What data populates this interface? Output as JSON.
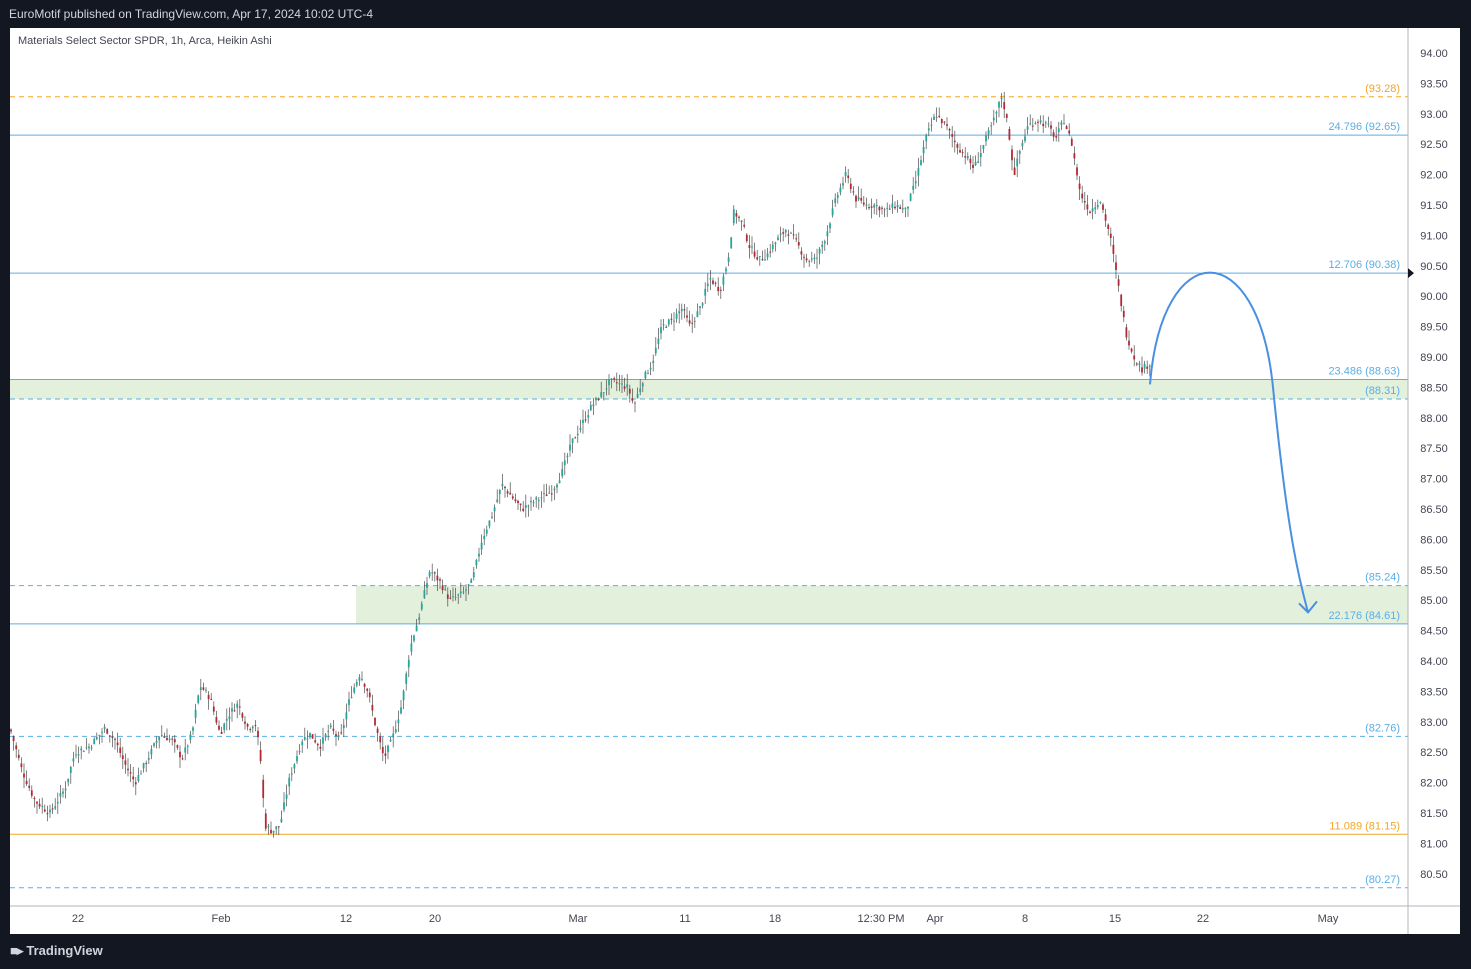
{
  "header": {
    "publish_text": "EuroMotif published on TradingView.com, Apr 17, 2024 10:02 UTC-4"
  },
  "footer": {
    "brand": "TradingView",
    "logo_icon": "tradingview-logo-icon"
  },
  "chart": {
    "symbol_text": "Materials Select Sector SPDR, 1h, Arca, Heikin Ashi"
  },
  "colors": {
    "up": "#26a69a",
    "down": "#b22833",
    "wick": "#4a4a4a",
    "blue_line": "#5aaee6",
    "orange_line": "#f5a623",
    "zone_fill": "#e3f0dc",
    "arrow": "#4a90e2"
  },
  "chart_data": {
    "type": "candlestick",
    "style": "Heikin Ashi",
    "timeframe": "1h",
    "y_range": [
      80.2,
      94.2
    ],
    "y_ticks": [
      "94.00",
      "93.50",
      "93.00",
      "92.50",
      "92.00",
      "91.50",
      "91.00",
      "90.50",
      "90.00",
      "89.50",
      "89.00",
      "88.50",
      "88.00",
      "87.50",
      "87.00",
      "86.50",
      "86.00",
      "85.50",
      "85.00",
      "84.50",
      "84.00",
      "83.50",
      "83.00",
      "82.50",
      "82.00",
      "81.50",
      "81.00",
      "80.50"
    ],
    "x_ticks": [
      "22",
      "Feb",
      "12",
      "20",
      "Mar",
      "11",
      "18",
      "12:30 PM",
      "Apr",
      "8",
      "15",
      "22",
      "May"
    ],
    "close_path": [
      [
        0,
        82.9
      ],
      [
        12,
        82.2
      ],
      [
        25,
        81.7
      ],
      [
        40,
        81.5
      ],
      [
        55,
        81.9
      ],
      [
        65,
        82.5
      ],
      [
        80,
        82.6
      ],
      [
        95,
        82.9
      ],
      [
        105,
        82.7
      ],
      [
        115,
        82.3
      ],
      [
        125,
        82.0
      ],
      [
        138,
        82.4
      ],
      [
        150,
        82.8
      ],
      [
        162,
        82.7
      ],
      [
        172,
        82.4
      ],
      [
        182,
        82.8
      ],
      [
        190,
        83.6
      ],
      [
        200,
        83.4
      ],
      [
        210,
        82.8
      ],
      [
        218,
        83.1
      ],
      [
        228,
        83.3
      ],
      [
        238,
        82.9
      ],
      [
        245,
        83.0
      ],
      [
        250,
        82.5
      ],
      [
        255,
        81.3
      ],
      [
        262,
        81.2
      ],
      [
        270,
        81.3
      ],
      [
        280,
        82.1
      ],
      [
        292,
        82.7
      ],
      [
        300,
        82.8
      ],
      [
        310,
        82.6
      ],
      [
        320,
        82.9
      ],
      [
        330,
        82.7
      ],
      [
        340,
        83.4
      ],
      [
        350,
        83.8
      ],
      [
        358,
        83.5
      ],
      [
        366,
        82.9
      ],
      [
        374,
        82.4
      ],
      [
        382,
        82.7
      ],
      [
        392,
        83.3
      ],
      [
        400,
        84.2
      ],
      [
        410,
        84.8
      ],
      [
        420,
        85.5
      ],
      [
        430,
        85.3
      ],
      [
        440,
        85.0
      ],
      [
        452,
        85.1
      ],
      [
        462,
        85.3
      ],
      [
        472,
        86.0
      ],
      [
        482,
        86.4
      ],
      [
        492,
        86.9
      ],
      [
        502,
        86.7
      ],
      [
        512,
        86.5
      ],
      [
        522,
        86.6
      ],
      [
        532,
        86.7
      ],
      [
        542,
        86.8
      ],
      [
        552,
        87.1
      ],
      [
        562,
        87.6
      ],
      [
        572,
        87.9
      ],
      [
        582,
        88.2
      ],
      [
        592,
        88.4
      ],
      [
        600,
        88.6
      ],
      [
        610,
        88.55
      ],
      [
        618,
        88.5
      ],
      [
        624,
        88.2
      ],
      [
        632,
        88.6
      ],
      [
        642,
        88.9
      ],
      [
        652,
        89.5
      ],
      [
        662,
        89.6
      ],
      [
        672,
        89.8
      ],
      [
        680,
        89.5
      ],
      [
        690,
        89.8
      ],
      [
        700,
        90.3
      ],
      [
        710,
        90.1
      ],
      [
        718,
        90.6
      ],
      [
        724,
        91.4
      ],
      [
        732,
        91.2
      ],
      [
        740,
        90.8
      ],
      [
        750,
        90.6
      ],
      [
        758,
        90.7
      ],
      [
        766,
        90.9
      ],
      [
        776,
        91.1
      ],
      [
        786,
        90.9
      ],
      [
        796,
        90.6
      ],
      [
        806,
        90.6
      ],
      [
        816,
        91.0
      ],
      [
        826,
        91.6
      ],
      [
        836,
        92.0
      ],
      [
        846,
        91.6
      ],
      [
        856,
        91.5
      ],
      [
        866,
        91.5
      ],
      [
        876,
        91.4
      ],
      [
        886,
        91.5
      ],
      [
        896,
        91.4
      ],
      [
        906,
        91.9
      ],
      [
        916,
        92.6
      ],
      [
        926,
        93.0
      ],
      [
        936,
        92.8
      ],
      [
        946,
        92.5
      ],
      [
        956,
        92.3
      ],
      [
        964,
        92.1
      ],
      [
        974,
        92.5
      ],
      [
        984,
        92.9
      ],
      [
        992,
        93.3
      ],
      [
        998,
        92.8
      ],
      [
        1004,
        92.0
      ],
      [
        1010,
        92.4
      ],
      [
        1018,
        92.8
      ],
      [
        1028,
        92.9
      ],
      [
        1038,
        92.8
      ],
      [
        1046,
        92.6
      ],
      [
        1054,
        92.9
      ],
      [
        1062,
        92.5
      ],
      [
        1070,
        91.7
      ],
      [
        1080,
        91.4
      ],
      [
        1090,
        91.6
      ],
      [
        1100,
        91.0
      ],
      [
        1108,
        90.2
      ],
      [
        1116,
        89.4
      ],
      [
        1124,
        89.0
      ],
      [
        1132,
        88.8
      ],
      [
        1140,
        88.9
      ],
      [
        1149,
        89.0
      ]
    ],
    "levels": [
      {
        "label": "(93.28)",
        "price": 93.28,
        "color": "orange",
        "style": "dashed"
      },
      {
        "label": "24.796 (92.65)",
        "price": 92.65,
        "color": "blue",
        "style": "solid"
      },
      {
        "label": "12.706 (90.38)",
        "price": 90.38,
        "color": "blue",
        "style": "solid"
      },
      {
        "label": "23.486 (88.63)",
        "price": 88.63,
        "color": "blue",
        "style": "solid"
      },
      {
        "label": "(88.31)",
        "price": 88.31,
        "color": "blue",
        "style": "dashed"
      },
      {
        "label": "(85.24)",
        "price": 85.24,
        "color": "blue",
        "style": "dashed"
      },
      {
        "label": "22.176 (84.61)",
        "price": 84.61,
        "color": "blue",
        "style": "solid"
      },
      {
        "label": "(82.76)",
        "price": 82.76,
        "color": "blue",
        "style": "dashed"
      },
      {
        "label": "11.089 (81.15)",
        "price": 81.15,
        "color": "orange",
        "style": "solid"
      },
      {
        "label": "(80.27)",
        "price": 80.27,
        "color": "blue",
        "style": "dashed"
      }
    ],
    "zones": [
      {
        "top": 88.63,
        "bottom": 88.31
      },
      {
        "top": 85.24,
        "bottom": 84.61
      }
    ],
    "projection": {
      "from": 88.55,
      "peak": 90.35,
      "to": 84.8
    }
  }
}
